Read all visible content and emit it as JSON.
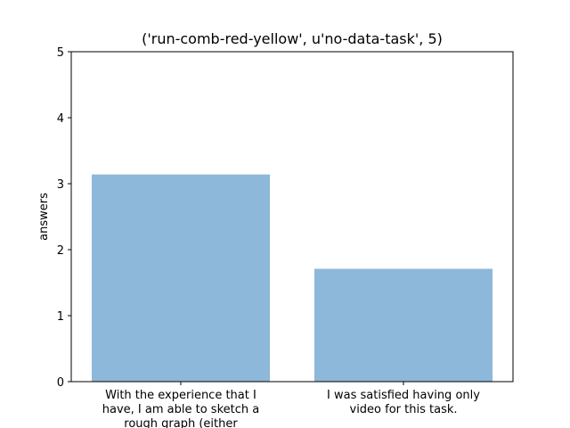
{
  "chart_data": {
    "type": "bar",
    "title": "('run-comb-red-yellow', u'no-data-task', 5)",
    "xlabel": "",
    "ylabel": "answers",
    "ylim": [
      0,
      5
    ],
    "yticks": [
      "0",
      "1",
      "2",
      "3",
      "4",
      "5"
    ],
    "categories": [
      [
        "With the experience that I",
        "have, I am able to sketch a",
        "rough graph (either"
      ],
      [
        "I was satisfied having only",
        "video for this task."
      ]
    ],
    "values": [
      3.14,
      1.71
    ],
    "bar_color": "#8db8da",
    "grid": false,
    "legend": "none"
  }
}
